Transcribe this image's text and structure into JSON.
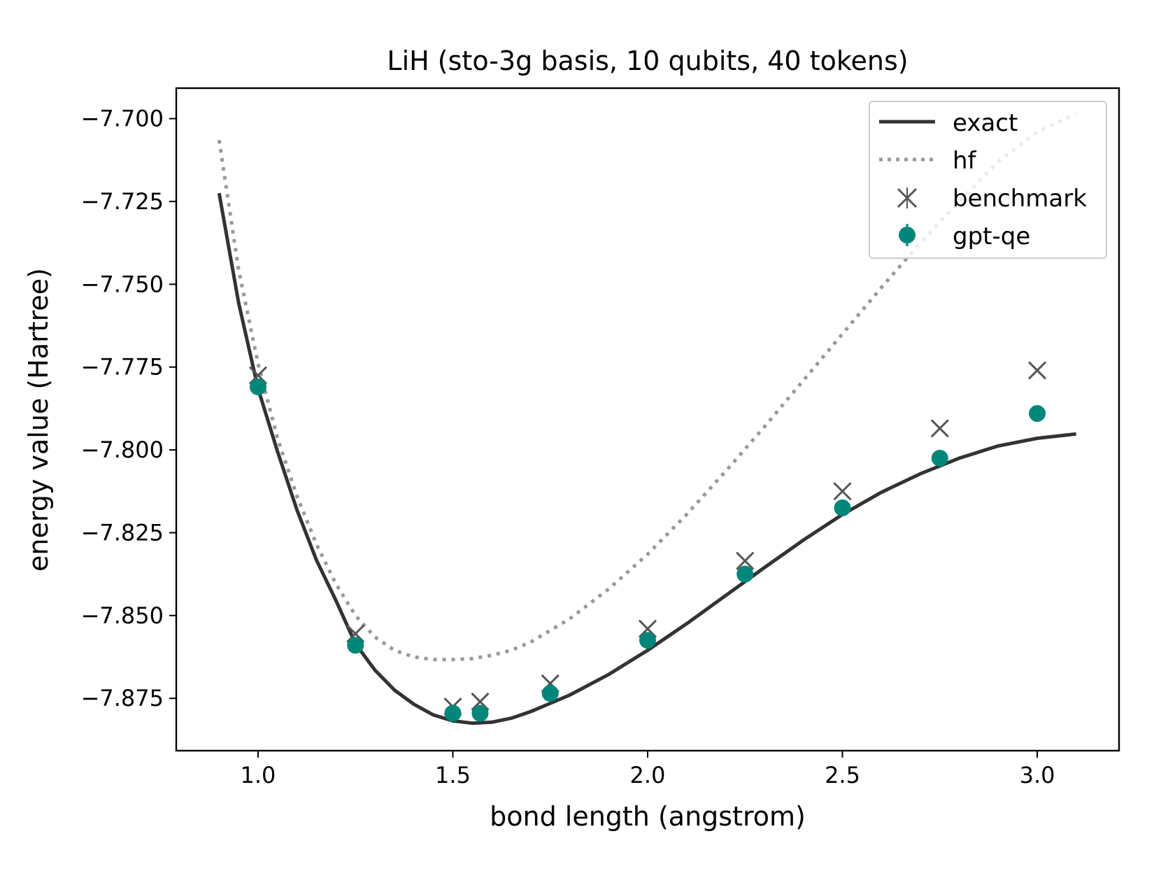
{
  "chart_data": {
    "type": "line",
    "title": "LiH (sto-3g basis, 10 qubits, 40 tokens)",
    "xlabel": "bond length (angstrom)",
    "ylabel": "energy value (Hartree)",
    "xlim": [
      0.79,
      3.21
    ],
    "ylim": [
      -7.8908,
      -7.6908
    ],
    "xticks": [
      1.0,
      1.5,
      2.0,
      2.5,
      3.0
    ],
    "xtick_labels": [
      "1.0",
      "1.5",
      "2.0",
      "2.5",
      "3.0"
    ],
    "yticks": [
      -7.7,
      -7.725,
      -7.75,
      -7.775,
      -7.8,
      -7.825,
      -7.85,
      -7.875
    ],
    "ytick_labels": [
      "−7.700",
      "−7.725",
      "−7.750",
      "−7.775",
      "−7.800",
      "−7.825",
      "−7.850",
      "−7.875"
    ],
    "grid": false,
    "legend_position": "top-right",
    "colors": {
      "exact": "#333333",
      "hf": "#999999",
      "benchmark": "#555555",
      "gpt_qe": "#00877a"
    },
    "series": [
      {
        "name": "exact",
        "style": "solid",
        "x": [
          0.9,
          0.95,
          1.0,
          1.05,
          1.1,
          1.15,
          1.2,
          1.25,
          1.3,
          1.35,
          1.4,
          1.45,
          1.5,
          1.55,
          1.6,
          1.65,
          1.7,
          1.8,
          1.9,
          2.0,
          2.1,
          2.2,
          2.3,
          2.4,
          2.5,
          2.6,
          2.7,
          2.8,
          2.9,
          3.0,
          3.1
        ],
        "y": [
          -7.7225,
          -7.7555,
          -7.7815,
          -7.8005,
          -7.8182,
          -7.8333,
          -7.8455,
          -7.8585,
          -7.8665,
          -7.8725,
          -7.8768,
          -7.88,
          -7.8818,
          -7.8825,
          -7.8822,
          -7.881,
          -7.879,
          -7.874,
          -7.8678,
          -7.8605,
          -7.8525,
          -7.844,
          -7.8355,
          -7.8272,
          -7.8195,
          -7.8128,
          -7.8072,
          -7.8025,
          -7.7988,
          -7.7965,
          -7.7952
        ]
      },
      {
        "name": "hf",
        "style": "dotted",
        "x": [
          0.9,
          0.95,
          1.0,
          1.05,
          1.1,
          1.15,
          1.2,
          1.25,
          1.3,
          1.35,
          1.4,
          1.45,
          1.5,
          1.55,
          1.6,
          1.65,
          1.7,
          1.8,
          1.9,
          2.0,
          2.1,
          2.2,
          2.3,
          2.4,
          2.5,
          2.6,
          2.7,
          2.8,
          2.9,
          3.0,
          3.1
        ],
        "y": [
          -7.7065,
          -7.7455,
          -7.774,
          -7.7965,
          -7.814,
          -7.8285,
          -7.8405,
          -7.85,
          -7.8565,
          -7.8605,
          -7.8625,
          -7.8633,
          -7.8633,
          -7.863,
          -7.862,
          -7.8605,
          -7.858,
          -7.851,
          -7.842,
          -7.8315,
          -7.8195,
          -7.8065,
          -7.793,
          -7.779,
          -7.765,
          -7.751,
          -7.7375,
          -7.725,
          -7.713,
          -7.704,
          -7.6985
        ]
      },
      {
        "name": "benchmark",
        "style": "marker-x",
        "x": [
          1.0,
          1.25,
          1.5,
          1.57,
          1.75,
          2.0,
          2.25,
          2.5,
          2.75,
          3.0
        ],
        "y": [
          -7.7775,
          -7.8555,
          -7.8775,
          -7.876,
          -7.8705,
          -7.854,
          -7.8335,
          -7.8125,
          -7.7935,
          -7.776
        ]
      },
      {
        "name": "gpt-qe",
        "style": "marker-dot",
        "x": [
          1.0,
          1.25,
          1.5,
          1.57,
          1.75,
          2.0,
          2.25,
          2.5,
          2.75,
          3.0
        ],
        "y": [
          -7.781,
          -7.859,
          -7.8795,
          -7.8795,
          -7.8735,
          -7.8575,
          -7.8375,
          -7.8175,
          -7.8025,
          -7.789
        ]
      }
    ]
  }
}
